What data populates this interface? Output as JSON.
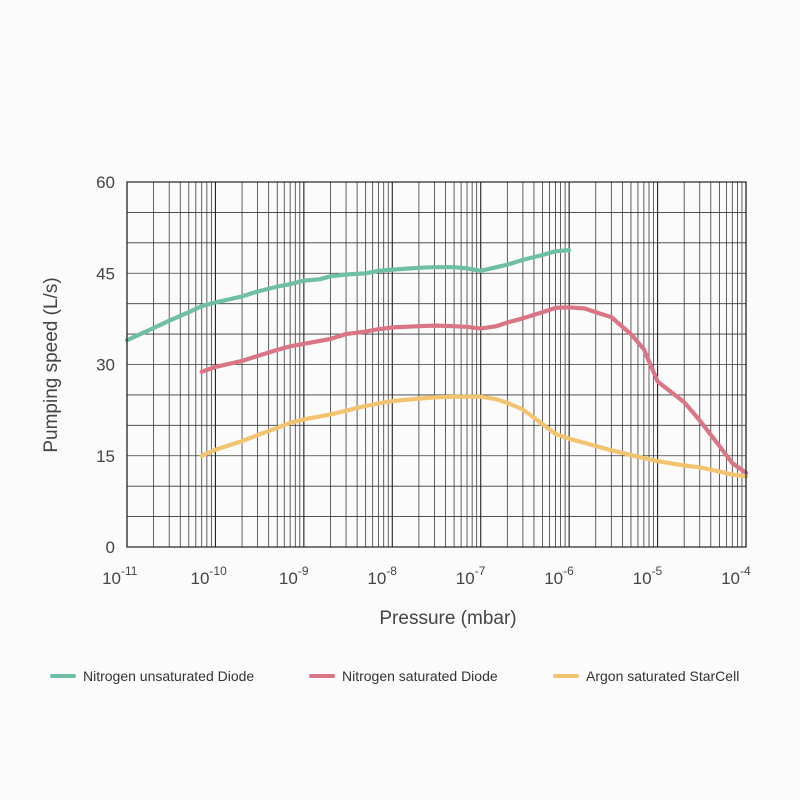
{
  "chart_data": {
    "type": "line",
    "xlabel": "Pressure (mbar)",
    "ylabel": "Pumping speed (L/s)",
    "x_scale": "log",
    "xlim": [
      1e-11,
      0.0001
    ],
    "ylim": [
      0,
      60
    ],
    "x_tick_bases": [
      "10",
      "10",
      "10",
      "10",
      "10",
      "10",
      "10",
      "10"
    ],
    "x_tick_exponents": [
      "-11",
      "-10",
      "-9",
      "-8",
      "-7",
      "-6",
      "-5",
      "-4"
    ],
    "x_tick_values": [
      1e-11,
      1e-10,
      1e-09,
      1e-08,
      1e-07,
      1e-06,
      1e-05,
      0.0001
    ],
    "y_ticks": [
      "0",
      "15",
      "30",
      "45",
      "60"
    ],
    "y_tick_values": [
      0,
      15,
      30,
      45,
      60
    ],
    "grid": true,
    "legend_position": "bottom",
    "series": [
      {
        "name": "Nitrogen unsaturated Diode",
        "color": "#6fbfa5",
        "x": [
          1e-11,
          2e-11,
          3e-11,
          5e-11,
          7e-11,
          1e-10,
          2e-10,
          3e-10,
          5e-10,
          7e-10,
          1e-09,
          1.5e-09,
          2e-09,
          3e-09,
          5e-09,
          7e-09,
          1e-08,
          2e-08,
          3e-08,
          5e-08,
          7e-08,
          1e-07,
          2e-07,
          3e-07,
          5e-07,
          7e-07,
          1e-06
        ],
        "y": [
          34,
          36,
          37.2,
          38.6,
          39.6,
          40.2,
          41.2,
          42,
          42.8,
          43.2,
          43.8,
          44,
          44.5,
          44.8,
          45,
          45.4,
          45.6,
          45.9,
          46,
          46,
          45.8,
          45.4,
          46.4,
          47.2,
          48,
          48.6,
          48.8
        ]
      },
      {
        "name": "Nitrogen saturated Diode",
        "color": "#d97585",
        "x": [
          7e-11,
          1e-10,
          2e-10,
          3e-10,
          5e-10,
          7e-10,
          1e-09,
          2e-09,
          3e-09,
          5e-09,
          7e-09,
          1e-08,
          2e-08,
          3e-08,
          5e-08,
          7e-08,
          1e-07,
          1.5e-07,
          2e-07,
          3e-07,
          5e-07,
          7e-07,
          1e-06,
          1.5e-06,
          2e-06,
          3e-06,
          5e-06,
          7e-06,
          1e-05,
          2e-05,
          3e-05,
          5e-05,
          7e-05,
          0.0001
        ],
        "y": [
          28.8,
          29.6,
          30.6,
          31.4,
          32.4,
          33,
          33.4,
          34.2,
          35,
          35.4,
          35.8,
          36.1,
          36.3,
          36.4,
          36.3,
          36.2,
          35.9,
          36.3,
          36.9,
          37.6,
          38.6,
          39.3,
          39.4,
          39.2,
          38.6,
          37.8,
          35,
          32.5,
          27.2,
          23.8,
          20.8,
          16.6,
          13.8,
          12.2
        ]
      },
      {
        "name": "Argon saturated StarCell",
        "color": "#f2c46f",
        "x": [
          7e-11,
          1e-10,
          2e-10,
          3e-10,
          5e-10,
          7e-10,
          1e-09,
          2e-09,
          3e-09,
          5e-09,
          7e-09,
          1e-08,
          2e-08,
          3e-08,
          5e-08,
          7e-08,
          1e-07,
          1.5e-07,
          2e-07,
          3e-07,
          5e-07,
          7e-07,
          1e-06,
          1.5e-06,
          2e-06,
          3e-06,
          5e-06,
          7e-06,
          1e-05,
          2e-05,
          3e-05,
          5e-05,
          7e-05,
          0.0001
        ],
        "y": [
          15,
          16,
          17.4,
          18.4,
          19.6,
          20.4,
          21,
          21.8,
          22.4,
          23.2,
          23.6,
          24,
          24.4,
          24.6,
          24.7,
          24.7,
          24.7,
          24.3,
          23.7,
          22.6,
          20.2,
          18.6,
          17.8,
          17.1,
          16.6,
          15.9,
          15.1,
          14.6,
          14.1,
          13.4,
          13.1,
          12.4,
          11.9,
          11.6
        ]
      }
    ]
  }
}
